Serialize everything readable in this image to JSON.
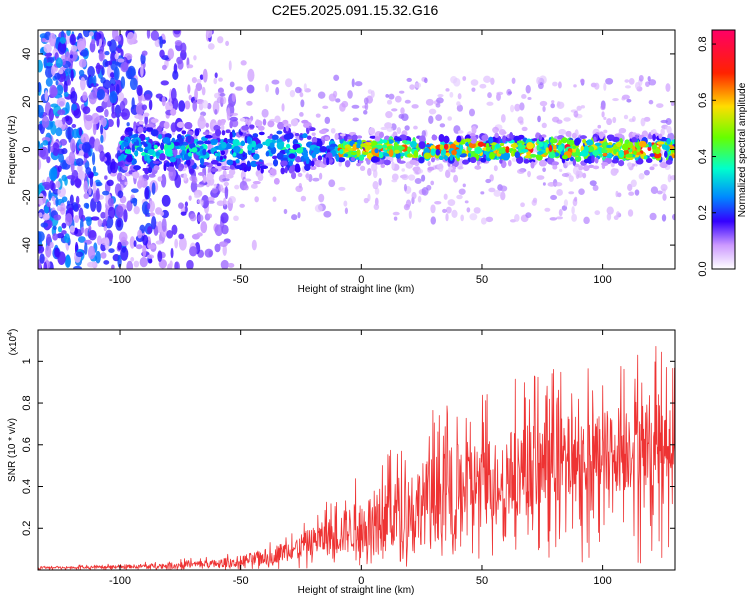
{
  "chart_data": [
    {
      "type": "heatmap",
      "title": "C2E5.2025.091.15.32.G16",
      "xlabel": "Height of straight line (km)",
      "ylabel": "Frequency (Hz)",
      "xlim": [
        -134,
        130
      ],
      "ylim": [
        -50,
        50
      ],
      "xticks": [
        -100,
        -50,
        0,
        50,
        100
      ],
      "yticks": [
        -40,
        -20,
        0,
        20,
        40
      ],
      "colorbar": {
        "label": "Normalized spectral amplitude",
        "range": [
          0.0,
          0.85
        ],
        "ticks": [
          "0.0",
          "0.2",
          "0.4",
          "0.6",
          "0.8"
        ]
      },
      "description_band": {
        "x_start_km": -100,
        "x_end_km": 130,
        "center_freq_hz": 0,
        "peak_normalized_amplitude": 0.8
      }
    },
    {
      "type": "line",
      "xlabel": "Height of straight line (km)",
      "ylabel": "SNR (10 * v/v)",
      "y_multiplier": "(x10",
      "y_multiplier_exp": "4",
      "xlim": [
        -134,
        130
      ],
      "ylim": [
        0,
        1.15
      ],
      "xticks": [
        -100,
        -50,
        0,
        50,
        100
      ],
      "yticks": [
        "0.2",
        "0.4",
        "0.6",
        "0.8",
        "1"
      ],
      "series": [
        {
          "color": "#ee3333",
          "envelope_x": [
            -134,
            -100,
            -80,
            -60,
            -50,
            -40,
            -30,
            -20,
            -10,
            0,
            10,
            20,
            30,
            40,
            50,
            60,
            70,
            80,
            90,
            100,
            110,
            120,
            130
          ],
          "envelope_mean": [
            0.01,
            0.015,
            0.02,
            0.03,
            0.04,
            0.06,
            0.09,
            0.13,
            0.16,
            0.2,
            0.24,
            0.28,
            0.32,
            0.36,
            0.4,
            0.44,
            0.46,
            0.49,
            0.52,
            0.55,
            0.57,
            0.6,
            0.62
          ],
          "envelope_peak": [
            0.02,
            0.03,
            0.05,
            0.07,
            0.1,
            0.14,
            0.2,
            0.28,
            0.38,
            0.48,
            0.6,
            0.7,
            0.78,
            0.85,
            0.88,
            0.9,
            0.95,
            0.97,
            0.98,
            1.0,
            1.05,
            1.12,
            1.0
          ]
        }
      ]
    }
  ]
}
